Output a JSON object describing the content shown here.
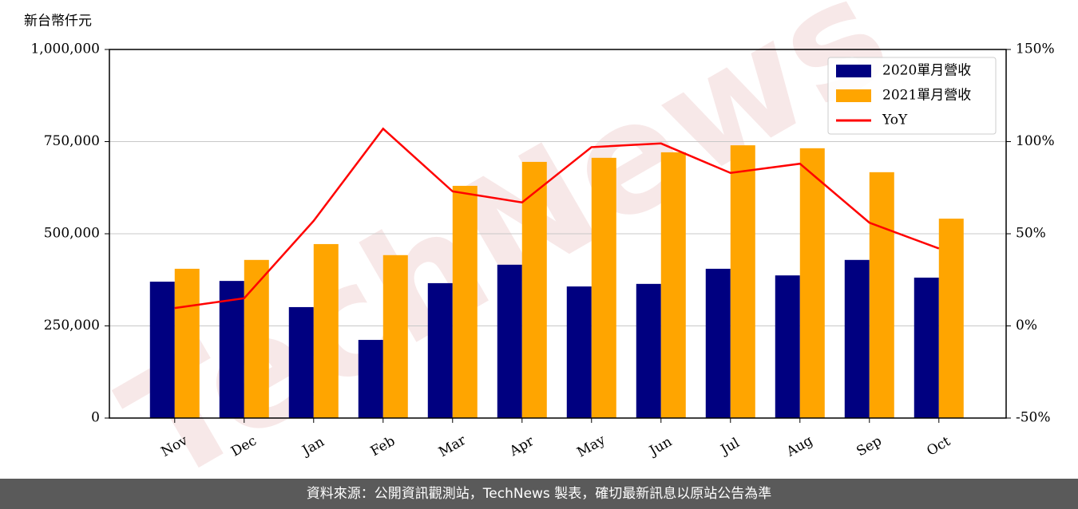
{
  "chart_data": {
    "type": "bar-line",
    "ylabel": "新台幣仟元",
    "watermark": "TechNews",
    "categories": [
      "Nov",
      "Dec",
      "Jan",
      "Feb",
      "Mar",
      "Apr",
      "May",
      "Jun",
      "Jul",
      "Aug",
      "Sep",
      "Oct"
    ],
    "series": [
      {
        "name": "2020單月營收",
        "type": "bar",
        "color": "#000080",
        "values": [
          370000,
          372000,
          301000,
          212000,
          366000,
          416000,
          357000,
          364000,
          405000,
          387000,
          429000,
          381000
        ]
      },
      {
        "name": "2021單月營收",
        "type": "bar",
        "color": "#ffa500",
        "values": [
          405000,
          429000,
          472000,
          442000,
          630000,
          695000,
          706000,
          721000,
          740000,
          732000,
          667000,
          541000
        ]
      },
      {
        "name": "YoY",
        "type": "line",
        "axis": "y2",
        "color": "#ff0000",
        "values": [
          9.7,
          15,
          57,
          107,
          73,
          67,
          97,
          99,
          83,
          88,
          56,
          42
        ]
      }
    ],
    "ylim": [
      0,
      1000000
    ],
    "yticks": [
      0,
      {
        "value": 250000,
        "label": "250,000"
      },
      {
        "value": 500000,
        "label": "500,000"
      },
      {
        "value": 750000,
        "label": "750,000"
      },
      {
        "value": 1000000,
        "label": "1,000,000"
      }
    ],
    "y2lim": [
      -50,
      150
    ],
    "y2ticks": [
      {
        "value": -50,
        "label": "-50%"
      },
      {
        "value": 0,
        "label": "0%"
      },
      {
        "value": 50,
        "label": "50%"
      },
      {
        "value": 100,
        "label": "100%"
      },
      {
        "value": 150,
        "label": "150%"
      }
    ],
    "grid": true,
    "legend": "upper right",
    "footer": "資料來源：公開資訊觀測站，TechNews 製表，確切最新訊息以原站公告為準"
  }
}
